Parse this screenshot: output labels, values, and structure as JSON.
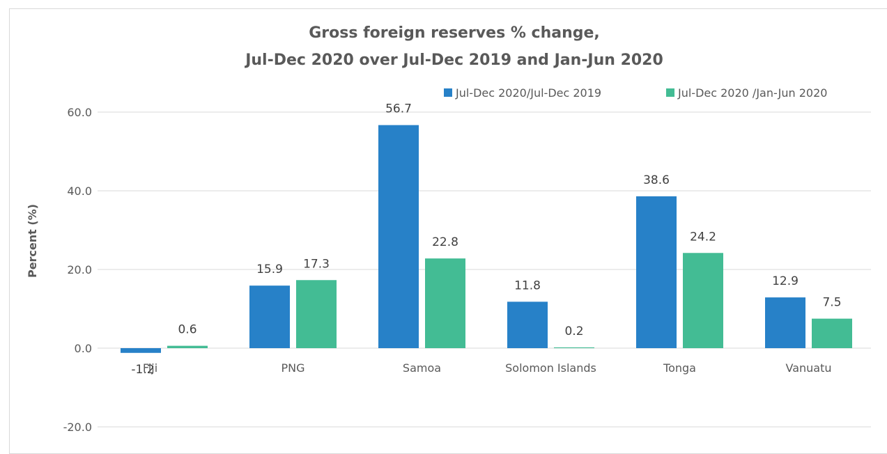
{
  "chart_data": {
    "type": "bar",
    "title_lines": [
      "Gross foreign reserves % change,",
      "Jul-Dec 2020 over Jul-Dec 2019 and Jan-Jun 2020"
    ],
    "ylabel": "Percent (%)",
    "xlabel": "",
    "categories": [
      "Fiji",
      "PNG",
      "Samoa",
      "Solomon Islands",
      "Tonga",
      "Vanuatu"
    ],
    "series": [
      {
        "name": "Jul-Dec 2020/Jul-Dec 2019",
        "color": "#2781c8",
        "values": [
          -1.2,
          15.9,
          56.7,
          11.8,
          38.6,
          12.9
        ]
      },
      {
        "name": "Jul-Dec 2020 /Jan-Jun 2020",
        "color": "#43bc94",
        "values": [
          0.6,
          17.3,
          22.8,
          0.2,
          24.2,
          7.5
        ]
      }
    ],
    "yticks": [
      "60.0",
      "40.0",
      "20.0",
      "0.0",
      "-20.0"
    ],
    "ylim": [
      -20,
      60
    ],
    "grid": true,
    "legend_position": "top-right",
    "gridline_color": "#d9d9d9"
  }
}
